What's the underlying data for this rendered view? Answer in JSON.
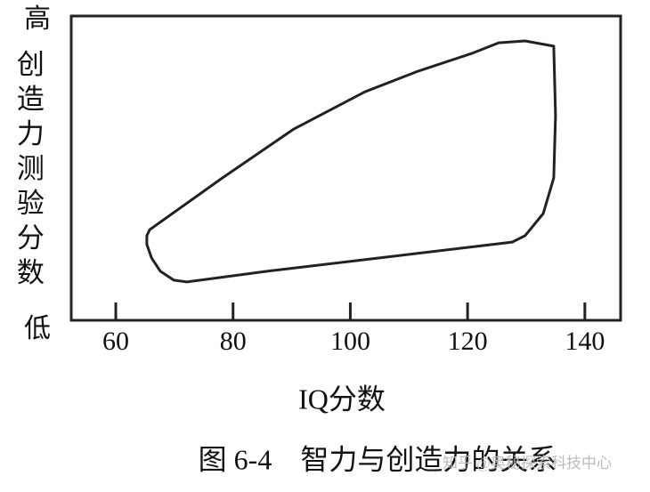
{
  "chart_data": {
    "type": "line",
    "title": "图 6-4　智力与创造力的关系",
    "x_label": "IQ分数",
    "y_label": "创造力测验分数",
    "watermark": "知乎 @奥秘探索科技中心",
    "xlim": [
      52.4,
      146.1
    ],
    "xticks": [
      60,
      80,
      100,
      120,
      140
    ],
    "ylim": [
      0,
      100
    ],
    "yticks": [
      {
        "value": 0,
        "label": "低"
      },
      {
        "value": 100,
        "label": "高"
      }
    ],
    "color": "#222",
    "x": [
      65.3,
      65.8,
      78.2,
      90.4,
      102.5,
      111.6,
      120.7,
      125.3,
      129.8,
      134.7,
      135.0,
      134.7,
      132.9,
      129.8,
      127.6,
      101.0,
      85.8,
      72.1,
      69.9,
      67.6,
      66.1,
      65.3
    ],
    "values": [
      27.8,
      29.8,
      46.8,
      62.9,
      75.1,
      81.9,
      87.7,
      91.2,
      91.8,
      90.1,
      67.3,
      46.8,
      35.1,
      27.8,
      25.7,
      19.6,
      16.1,
      12.6,
      13.2,
      16.1,
      20.5,
      24.9
    ]
  }
}
